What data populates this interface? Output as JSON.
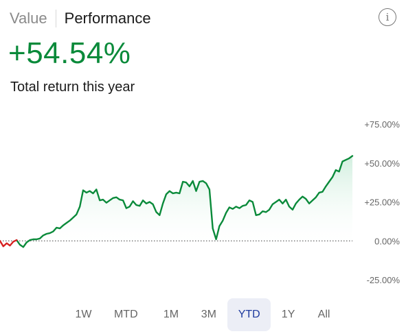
{
  "tabs": {
    "value": "Value",
    "performance": "Performance"
  },
  "info_icon": "info-icon",
  "headline": {
    "return_value": "+54.54%",
    "caption": "Total return this year"
  },
  "colors": {
    "positive": "#0a8a3a",
    "negative": "#d62020",
    "fill_top": "#cfeedd",
    "selected_bg": "#eceef6",
    "selected_text": "#1e3a9e"
  },
  "ranges": {
    "selected": "YTD",
    "items": [
      "1W",
      "MTD",
      "1M",
      "3M",
      "YTD",
      "1Y",
      "All"
    ]
  },
  "chart_data": {
    "type": "area",
    "y_ticks": [
      "+75.00%",
      "+50.00%",
      "+25.00%",
      "0.00%",
      "-25.00%"
    ],
    "ylim": [
      -25,
      75
    ],
    "baseline": 0,
    "x_count": 107,
    "series": [
      {
        "values": [
          0.0,
          -3.5,
          -1.5,
          -3.0,
          -0.5,
          0.5,
          -2.5,
          -4.0,
          -1.0,
          0.5,
          1.0,
          1.0,
          1.5,
          3.5,
          4.5,
          5.0,
          6.0,
          8.5,
          8.0,
          10.0,
          11.5,
          13.0,
          15.0,
          17.0,
          22.0,
          32.5,
          31.0,
          32.0,
          30.5,
          33.0,
          26.0,
          26.5,
          24.5,
          26.0,
          27.5,
          28.0,
          26.5,
          26.0,
          21.0,
          22.0,
          25.5,
          23.0,
          22.5,
          26.0,
          24.0,
          25.0,
          23.5,
          18.5,
          16.5,
          24.0,
          30.0,
          32.0,
          30.5,
          31.0,
          30.5,
          38.0,
          37.5,
          35.0,
          38.5,
          32.0,
          38.0,
          38.5,
          37.0,
          33.0,
          8.0,
          1.0,
          9.5,
          13.0,
          18.0,
          21.5,
          20.5,
          22.0,
          21.0,
          22.5,
          23.0,
          26.0,
          25.0,
          16.5,
          17.0,
          19.0,
          18.5,
          20.0,
          23.5,
          25.0,
          26.5,
          24.0,
          26.5,
          22.0,
          20.0,
          24.0,
          26.5,
          28.5,
          27.0,
          24.0,
          26.0,
          28.0,
          31.0,
          31.5,
          35.0,
          38.0,
          41.0,
          45.5,
          44.5,
          51.0,
          52.0,
          53.0,
          54.54
        ],
        "positive_color": "#0a8a3a",
        "negative_color": "#d62020"
      }
    ],
    "grid": false
  }
}
